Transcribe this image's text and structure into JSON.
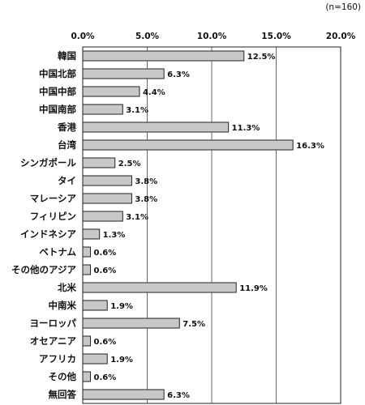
{
  "chart_data": {
    "type": "bar",
    "orientation": "horizontal",
    "note": "(n=160)",
    "xlim": [
      0,
      20
    ],
    "x_ticks": [
      "0.0%",
      "5.0%",
      "10.0%",
      "15.0%",
      "20.0%"
    ],
    "grid": "vertical",
    "categories": [
      "韓国",
      "中国北部",
      "中国中部",
      "中国南部",
      "香港",
      "台湾",
      "シンガポール",
      "タイ",
      "マレーシア",
      "フィリピン",
      "インドネシア",
      "ベトナム",
      "その他のアジア",
      "北米",
      "中南米",
      "ヨーロッパ",
      "オセアニア",
      "アフリカ",
      "その他",
      "無回答"
    ],
    "values": [
      12.5,
      6.3,
      4.4,
      3.1,
      11.3,
      16.3,
      2.5,
      3.8,
      3.8,
      3.1,
      1.3,
      0.6,
      0.6,
      11.9,
      1.9,
      7.5,
      0.6,
      1.9,
      0.6,
      6.3
    ],
    "value_labels": [
      "12.5%",
      "6.3%",
      "4.4%",
      "3.1%",
      "11.3%",
      "16.3%",
      "2.5%",
      "3.8%",
      "3.8%",
      "3.1%",
      "1.3%",
      "0.6%",
      "0.6%",
      "11.9%",
      "1.9%",
      "7.5%",
      "0.6%",
      "1.9%",
      "0.6%",
      "6.3%"
    ],
    "colors": {
      "bar_fill": "#c8c8c8",
      "bar_stroke": "#222222",
      "grid": "#444444"
    }
  }
}
